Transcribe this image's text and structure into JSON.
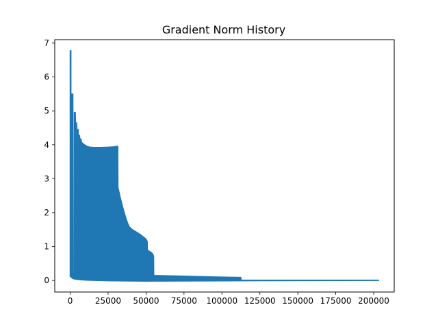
{
  "chart_data": {
    "type": "line",
    "title": "Gradient Norm History",
    "xlabel": "",
    "ylabel": "",
    "xlim": [
      -10166,
      213516
    ],
    "ylim": [
      -0.34,
      7.1
    ],
    "xticks": [
      0,
      25000,
      50000,
      75000,
      100000,
      125000,
      150000,
      175000,
      200000
    ],
    "yticks": [
      0,
      1,
      2,
      3,
      4,
      5,
      6,
      7
    ],
    "grid": false,
    "legend": "none",
    "series": [
      {
        "color": "#1f77b4",
        "x_end": 203350,
        "upper_envelope": [
          [
            0,
            6.78
          ],
          [
            500,
            6.78
          ],
          [
            600,
            0.2
          ],
          [
            1000,
            0.2
          ],
          [
            1100,
            5.5
          ],
          [
            1800,
            5.5
          ],
          [
            1900,
            0.2
          ],
          [
            2600,
            0.2
          ],
          [
            2700,
            4.95
          ],
          [
            3400,
            4.95
          ],
          [
            3500,
            4.65
          ],
          [
            4300,
            4.65
          ],
          [
            4400,
            4.45
          ],
          [
            5300,
            4.45
          ],
          [
            5400,
            4.28
          ],
          [
            6200,
            4.28
          ],
          [
            6400,
            4.17
          ],
          [
            7200,
            4.17
          ],
          [
            7400,
            4.08
          ],
          [
            8300,
            4.04
          ],
          [
            9500,
            4.0
          ],
          [
            11000,
            3.96
          ],
          [
            13000,
            3.93
          ],
          [
            16000,
            3.92
          ],
          [
            20000,
            3.92
          ],
          [
            25000,
            3.93
          ],
          [
            28000,
            3.94
          ],
          [
            31000,
            3.96
          ],
          [
            31400,
            3.96
          ],
          [
            31500,
            2.75
          ],
          [
            33000,
            2.45
          ],
          [
            35000,
            2.1
          ],
          [
            37000,
            1.8
          ],
          [
            38000,
            1.68
          ],
          [
            39000,
            1.58
          ],
          [
            41000,
            1.5
          ],
          [
            44000,
            1.42
          ],
          [
            47000,
            1.33
          ],
          [
            50000,
            1.22
          ],
          [
            50800,
            1.15
          ],
          [
            50900,
            0.9
          ],
          [
            53000,
            0.84
          ],
          [
            54500,
            0.78
          ],
          [
            54700,
            0.74
          ],
          [
            55000,
            0.72
          ],
          [
            55100,
            0.15
          ],
          [
            65000,
            0.14
          ],
          [
            75000,
            0.13
          ],
          [
            90000,
            0.11
          ],
          [
            100000,
            0.1
          ],
          [
            112500,
            0.09
          ],
          [
            112600,
            0.01
          ],
          [
            203350,
            0.01
          ]
        ],
        "lower_envelope": [
          [
            0,
            0.12
          ],
          [
            2000,
            0.05
          ],
          [
            5000,
            0.03
          ],
          [
            10000,
            0.01
          ],
          [
            25000,
            -0.01
          ],
          [
            50000,
            -0.02
          ],
          [
            112500,
            -0.01
          ],
          [
            203350,
            0.0
          ]
        ]
      }
    ]
  }
}
